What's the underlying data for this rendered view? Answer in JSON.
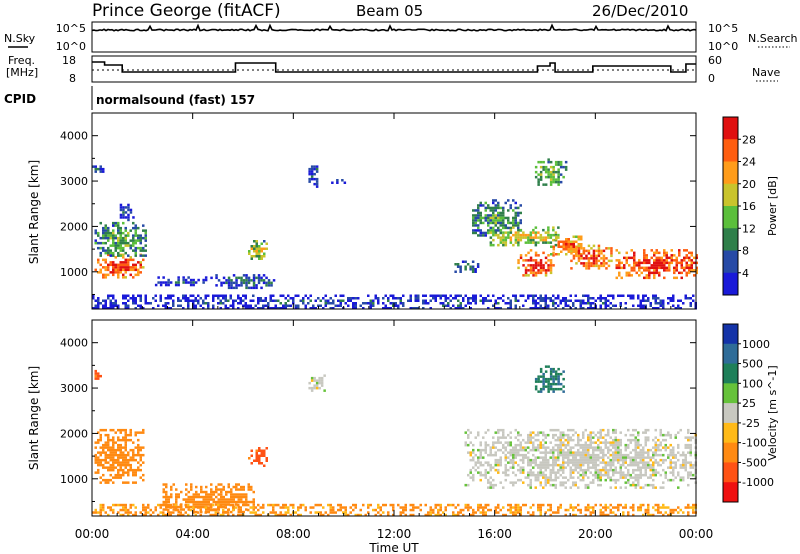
{
  "header": {
    "station": "Prince George (fitACF)",
    "beam": "Beam 05",
    "date": "26/Dec/2010"
  },
  "noise_panel": {
    "left_label": "N.Sky",
    "right_label": "N.Search",
    "left_ticks": [
      "10^5",
      "10^0"
    ],
    "right_ticks": [
      "10^5",
      "10^0"
    ]
  },
  "freq_panel": {
    "left_label_1": "Freq.",
    "left_label_2": "[MHz]",
    "right_label": "Nave",
    "left_ticks": [
      "18",
      "8"
    ],
    "right_ticks": [
      "60",
      "0"
    ]
  },
  "cpid": {
    "label": "CPID",
    "value": "normalsound (fast) 157"
  },
  "x_ticks": [
    "00:00",
    "04:00",
    "08:00",
    "12:00",
    "16:00",
    "20:00",
    "00:00"
  ],
  "x_label": "Time UT",
  "colors": {
    "scale": [
      "#1a1ad8",
      "#274aa6",
      "#2f7f4a",
      "#5bbf3b",
      "#c9c42c",
      "#ff9c1a",
      "#ff5e10",
      "#e01010"
    ],
    "velocity_scale": [
      "#1433a8",
      "#2f6c98",
      "#1e7f59",
      "#66c23a",
      "#c8c8c0",
      "#ffba18",
      "#ff8a12",
      "#ff5214",
      "#ef1010"
    ]
  },
  "chart_data": [
    {
      "type": "heatmap",
      "title": "",
      "xlabel": "",
      "ylabel": "Slant Range [km]",
      "xlim": [
        0,
        24
      ],
      "ylim": [
        180,
        4500
      ],
      "y_ticks": [
        "1000",
        "2000",
        "3000",
        "4000"
      ],
      "colorbar": {
        "label": "Power [dB]",
        "ticks": [
          "4",
          "8",
          "12",
          "16",
          "20",
          "24",
          "28"
        ],
        "range": [
          0,
          30
        ]
      },
      "blobs": [
        {
          "t": [
            0.1,
            2.1
          ],
          "r": [
            900,
            1400
          ],
          "power": 27
        },
        {
          "t": [
            0.1,
            2.1
          ],
          "r": [
            1350,
            2100
          ],
          "power": 13
        },
        {
          "t": [
            0.0,
            0.4
          ],
          "r": [
            3200,
            3400
          ],
          "power": 8
        },
        {
          "t": [
            1.0,
            1.6
          ],
          "r": [
            2150,
            2500
          ],
          "power": 6
        },
        {
          "t": [
            2.5,
            4.5
          ],
          "r": [
            700,
            900
          ],
          "power": 6
        },
        {
          "t": [
            4.7,
            7.2
          ],
          "r": [
            650,
            950
          ],
          "power": 8
        },
        {
          "t": [
            6.2,
            6.9
          ],
          "r": [
            1300,
            1700
          ],
          "power": 18
        },
        {
          "t": [
            8.6,
            9.0
          ],
          "r": [
            2900,
            3400
          ],
          "power": 7
        },
        {
          "t": [
            9.5,
            10.0
          ],
          "r": [
            2950,
            3100
          ],
          "power": 6
        },
        {
          "t": [
            14.4,
            15.3
          ],
          "r": [
            1000,
            1250
          ],
          "power": 10
        },
        {
          "t": [
            15.1,
            17.0
          ],
          "r": [
            1800,
            2600
          ],
          "power": 12
        },
        {
          "t": [
            15.8,
            18.5
          ],
          "r": [
            1600,
            2000
          ],
          "power": 18
        },
        {
          "t": [
            16.9,
            18.3
          ],
          "r": [
            900,
            1500
          ],
          "power": 27
        },
        {
          "t": [
            17.6,
            18.8
          ],
          "r": [
            2900,
            3500
          ],
          "power": 14
        },
        {
          "t": [
            18.2,
            19.5
          ],
          "r": [
            1400,
            1800
          ],
          "power": 24
        },
        {
          "t": [
            19.0,
            20.6
          ],
          "r": [
            1050,
            1600
          ],
          "power": 26
        },
        {
          "t": [
            20.8,
            24.0
          ],
          "r": [
            850,
            1500
          ],
          "power": 28
        },
        {
          "t": [
            0.0,
            24.0
          ],
          "r": [
            200,
            500
          ],
          "power": 6
        }
      ]
    },
    {
      "type": "heatmap",
      "title": "",
      "xlabel": "Time UT",
      "ylabel": "Slant Range [km]",
      "xlim": [
        0,
        24
      ],
      "ylim": [
        180,
        4500
      ],
      "y_ticks": [
        "1000",
        "2000",
        "3000",
        "4000"
      ],
      "colorbar": {
        "label": "Velocity [m s^-1]",
        "ticks": [
          "1000",
          "500",
          "100",
          "25",
          "-25",
          "-100",
          "-500",
          "-1000"
        ],
        "range": [
          -1200,
          1200
        ]
      },
      "blobs": [
        {
          "t": [
            0.1,
            2.0
          ],
          "r": [
            900,
            2100
          ],
          "velocity": -180
        },
        {
          "t": [
            0.0,
            0.3
          ],
          "r": [
            3200,
            3400
          ],
          "velocity": -600
        },
        {
          "t": [
            2.8,
            6.4
          ],
          "r": [
            250,
            900
          ],
          "velocity": -180
        },
        {
          "t": [
            6.2,
            6.9
          ],
          "r": [
            1300,
            1700
          ],
          "velocity": -700
        },
        {
          "t": [
            8.6,
            9.2
          ],
          "r": [
            2900,
            3300
          ],
          "velocity": 0
        },
        {
          "t": [
            14.8,
            24.0
          ],
          "r": [
            800,
            2100
          ],
          "velocity": 0
        },
        {
          "t": [
            17.6,
            18.7
          ],
          "r": [
            2900,
            3500
          ],
          "velocity": 420
        },
        {
          "t": [
            0.0,
            24.0
          ],
          "r": [
            200,
            450
          ],
          "velocity": -120
        }
      ]
    }
  ]
}
